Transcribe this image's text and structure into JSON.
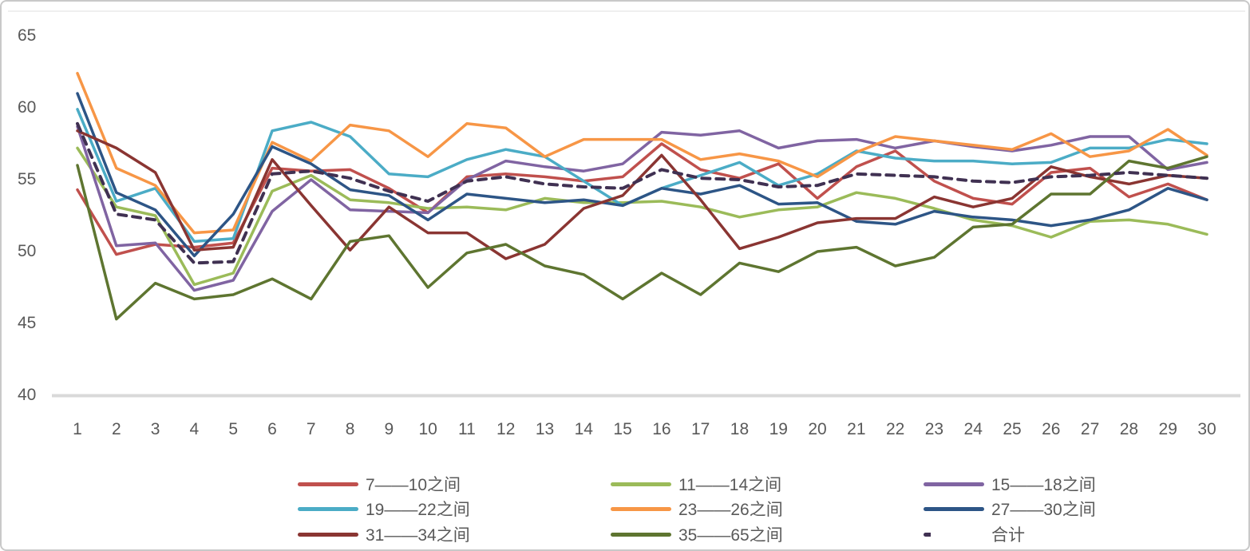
{
  "chart_data": {
    "type": "line",
    "title": "",
    "xlabel": "",
    "ylabel": "",
    "x": [
      1,
      2,
      3,
      4,
      5,
      6,
      7,
      8,
      9,
      10,
      11,
      12,
      13,
      14,
      15,
      16,
      17,
      18,
      19,
      20,
      21,
      22,
      23,
      24,
      25,
      26,
      27,
      28,
      29,
      30
    ],
    "ylim": [
      40,
      65
    ],
    "yticks": [
      65,
      60,
      55,
      50,
      45,
      40
    ],
    "grid": false,
    "legend_position": "bottom",
    "axis_color": "#d9d9d9",
    "tick_color": "#595959",
    "series": [
      {
        "name": "7——10之间",
        "color": "#C0504D",
        "dash": false,
        "values": [
          54.3,
          49.8,
          50.5,
          50.3,
          50.6,
          55.8,
          55.6,
          55.7,
          54.4,
          52.7,
          55.2,
          55.4,
          55.2,
          54.9,
          55.2,
          57.5,
          55.7,
          55.1,
          56.1,
          53.7,
          55.9,
          57.0,
          54.9,
          53.7,
          53.3,
          55.5,
          55.8,
          53.8,
          54.7,
          53.6
        ]
      },
      {
        "name": "11——14之间",
        "color": "#9BBB59",
        "dash": false,
        "values": [
          57.2,
          53.1,
          52.5,
          47.7,
          48.5,
          54.2,
          55.3,
          53.6,
          53.4,
          53.0,
          53.1,
          52.9,
          53.7,
          53.4,
          53.4,
          53.5,
          53.1,
          52.4,
          52.9,
          53.1,
          54.1,
          53.7,
          53.0,
          52.2,
          51.8,
          51.0,
          52.1,
          52.2,
          51.9,
          51.2
        ]
      },
      {
        "name": "15——18之间",
        "color": "#8064A2",
        "dash": false,
        "values": [
          58.7,
          50.4,
          50.6,
          47.3,
          48.0,
          52.8,
          55.0,
          52.9,
          52.8,
          52.7,
          55.0,
          56.3,
          55.9,
          55.6,
          56.1,
          58.3,
          58.1,
          58.4,
          57.2,
          57.7,
          57.8,
          57.2,
          57.7,
          57.3,
          57.0,
          57.4,
          58.0,
          58.0,
          55.7,
          56.2
        ]
      },
      {
        "name": "19——22之间",
        "color": "#4BACC6",
        "dash": false,
        "values": [
          59.9,
          53.5,
          54.4,
          50.7,
          50.9,
          58.4,
          59.0,
          58.0,
          55.4,
          55.2,
          56.4,
          57.1,
          56.6,
          54.9,
          53.2,
          54.4,
          55.3,
          56.2,
          54.6,
          55.4,
          57.0,
          56.5,
          56.3,
          56.3,
          56.1,
          56.2,
          57.2,
          57.2,
          57.8,
          57.5
        ]
      },
      {
        "name": "23——26之间",
        "color": "#F79646",
        "dash": false,
        "values": [
          62.4,
          55.8,
          54.6,
          51.3,
          51.5,
          57.6,
          56.3,
          58.8,
          58.4,
          56.6,
          58.9,
          58.6,
          56.6,
          57.8,
          57.8,
          57.8,
          56.4,
          56.8,
          56.3,
          55.2,
          56.9,
          58.0,
          57.7,
          57.4,
          57.1,
          58.2,
          56.6,
          57.0,
          58.5,
          56.7
        ]
      },
      {
        "name": "27——30之间",
        "color": "#2D5586",
        "dash": false,
        "values": [
          61.0,
          54.1,
          52.9,
          49.7,
          52.6,
          57.3,
          56.1,
          54.3,
          53.9,
          52.2,
          54.0,
          53.7,
          53.4,
          53.6,
          53.2,
          54.4,
          54.0,
          54.6,
          53.3,
          53.4,
          52.1,
          51.9,
          52.8,
          52.4,
          52.2,
          51.8,
          52.2,
          52.9,
          54.4,
          53.6
        ]
      },
      {
        "name": "31——34之间",
        "color": "#8A3532",
        "dash": false,
        "values": [
          58.4,
          57.2,
          55.5,
          50.1,
          50.3,
          56.4,
          53.2,
          50.1,
          53.1,
          51.3,
          51.3,
          49.5,
          50.5,
          53.0,
          53.9,
          56.7,
          53.6,
          50.2,
          51.0,
          52.0,
          52.3,
          52.3,
          53.8,
          53.1,
          53.7,
          55.9,
          55.2,
          54.7,
          55.3,
          55.1
        ]
      },
      {
        "name": "35——65之间",
        "color": "#5E7530",
        "dash": false,
        "values": [
          56.0,
          45.3,
          47.8,
          46.7,
          47.0,
          48.1,
          46.7,
          50.7,
          51.1,
          47.5,
          49.9,
          50.5,
          49.0,
          48.4,
          46.7,
          48.5,
          47.0,
          49.2,
          48.6,
          50.0,
          50.3,
          49.0,
          49.6,
          51.7,
          51.9,
          54.0,
          54.0,
          56.3,
          55.8,
          56.6
        ]
      },
      {
        "name": "合计",
        "color": "#403152",
        "dash": true,
        "values": [
          58.9,
          52.6,
          52.2,
          49.2,
          49.3,
          55.4,
          55.6,
          55.1,
          54.2,
          53.5,
          54.9,
          55.2,
          54.7,
          54.5,
          54.4,
          55.7,
          55.1,
          55.0,
          54.5,
          54.6,
          55.4,
          55.3,
          55.2,
          54.9,
          54.8,
          55.2,
          55.3,
          55.5,
          55.3,
          55.1
        ]
      }
    ]
  }
}
